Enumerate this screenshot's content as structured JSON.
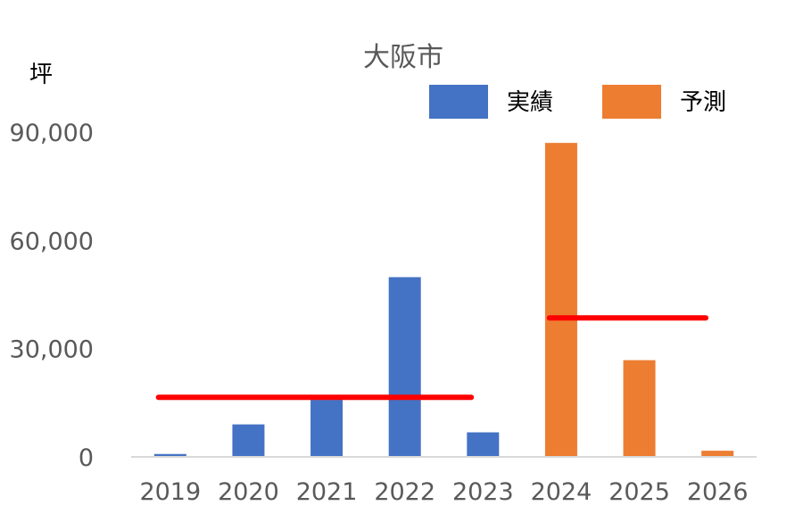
{
  "chart_data": {
    "type": "bar",
    "title": "大阪市",
    "ylabel": "坪",
    "xlabel": "",
    "categories": [
      "2019",
      "2020",
      "2021",
      "2022",
      "2023",
      "2024",
      "2025",
      "2026"
    ],
    "series": [
      {
        "name": "実績",
        "color": "#4472C4",
        "values": [
          800,
          9000,
          15800,
          49800,
          6800,
          null,
          null,
          null
        ]
      },
      {
        "name": "予測",
        "color": "#ED7D31",
        "values": [
          null,
          null,
          null,
          null,
          null,
          87000,
          26800,
          1700
        ]
      }
    ],
    "average_lines": [
      {
        "color": "#FF0000",
        "from": "2019",
        "to": "2023",
        "value": 16500
      },
      {
        "color": "#FF0000",
        "from": "2024",
        "to": "2026",
        "value": 38500
      }
    ],
    "ylim": [
      0,
      90000
    ],
    "yticks": [
      "0",
      "30,000",
      "60,000",
      "90,000"
    ],
    "ytick_values": [
      0,
      30000,
      60000,
      90000
    ],
    "grid": false,
    "legend": "top-right"
  }
}
